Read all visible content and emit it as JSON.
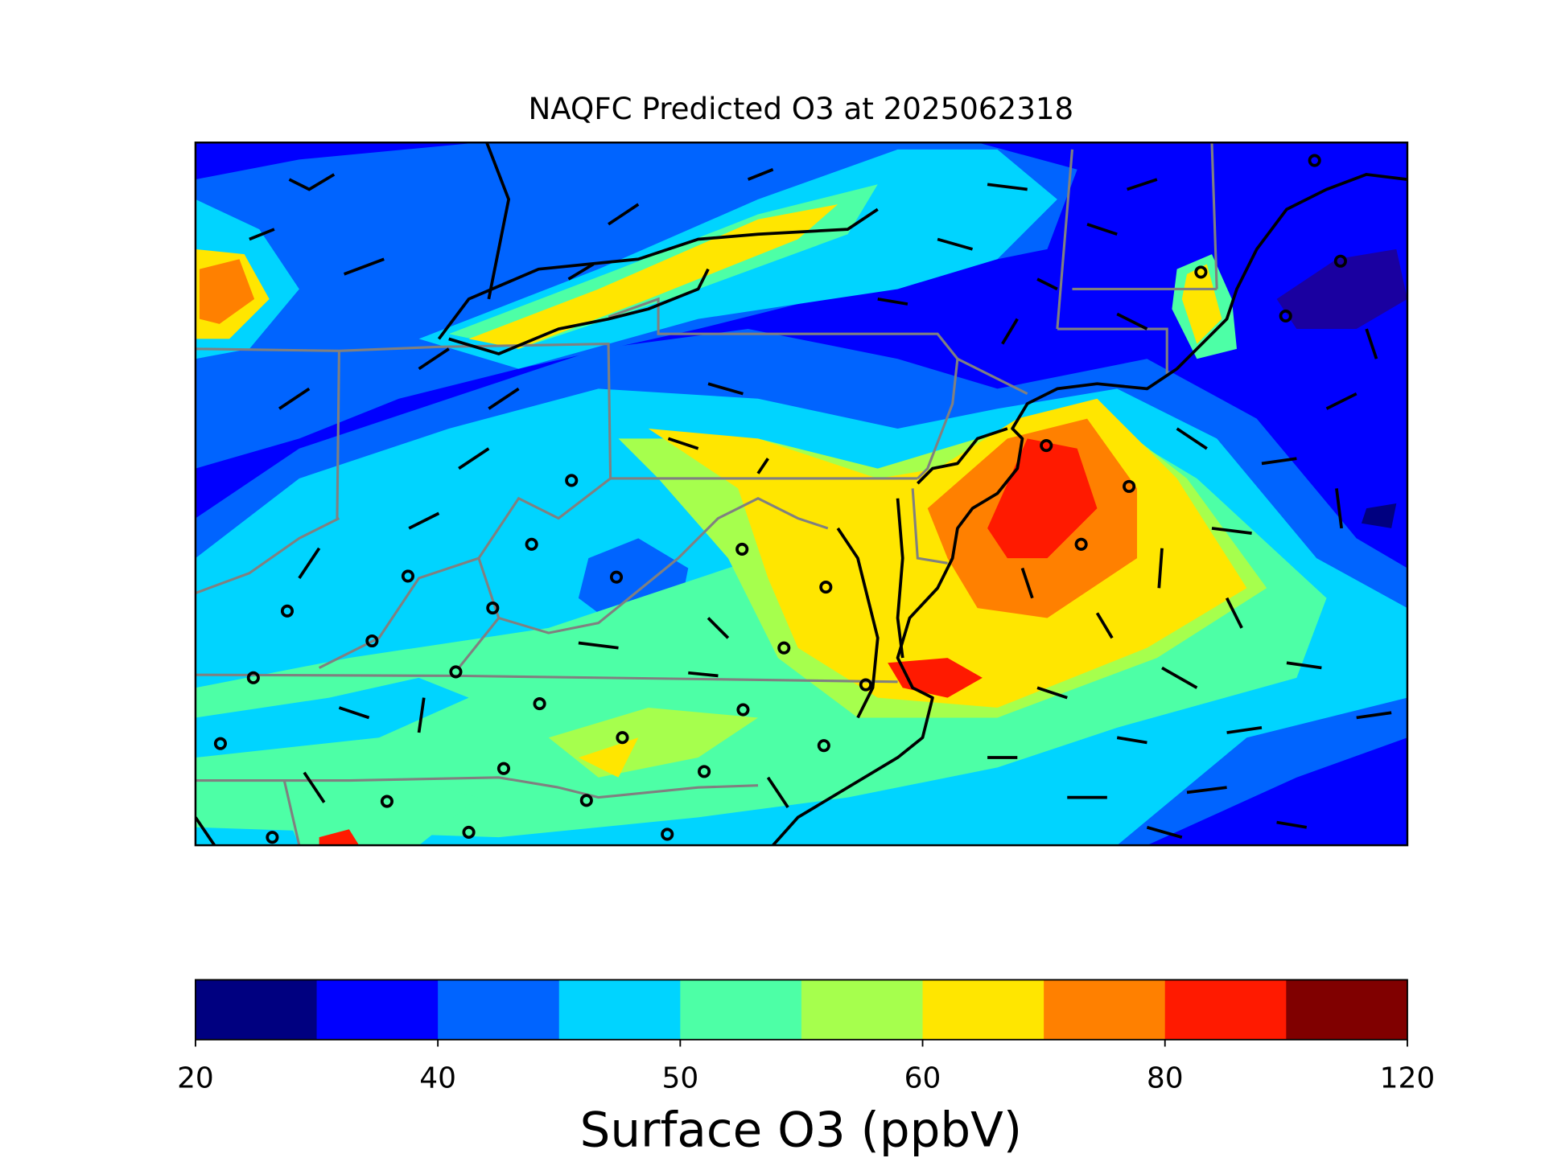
{
  "title": "NAQFC Predicted O3 at 2025062318",
  "colorbar": {
    "label": "Surface O3 (ppbV)",
    "colors": [
      "#000080",
      "#0000ff",
      "#0064ff",
      "#00d4ff",
      "#4dffa6",
      "#a6ff4d",
      "#ffe600",
      "#ff8000",
      "#ff1a00",
      "#800000"
    ],
    "ticks": [
      20,
      40,
      50,
      60,
      80,
      120
    ]
  }
}
